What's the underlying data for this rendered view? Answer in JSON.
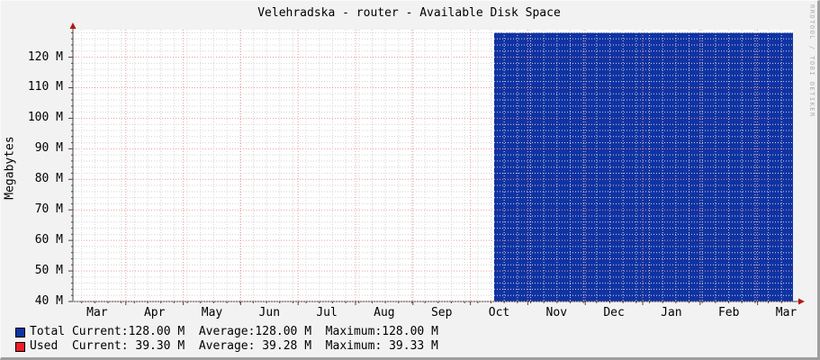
{
  "title": "Velehradska - router - Available Disk Space",
  "watermark": "RRDTOOL / TOBI OETIKER",
  "legend": {
    "labels": {
      "current": "Current:",
      "average": "Average:",
      "maximum": "Maximum:"
    },
    "rows": [
      {
        "name": "Total",
        "color": "#0f33a3",
        "current": "128.00 M",
        "average": "128.00 M",
        "maximum": "128.00 M"
      },
      {
        "name": "Used",
        "color": "#ee1e2a",
        "current": "39.30 M",
        "average": "39.28 M",
        "maximum": "39.33 M"
      }
    ]
  },
  "chart_data": {
    "type": "area",
    "title": "Velehradska - router - Available Disk Space",
    "xlabel": "",
    "ylabel": "Megabytes",
    "ylim": [
      40,
      129
    ],
    "y_unit": "M",
    "y_major_step": 10,
    "y_minor_step": 2,
    "grid": true,
    "legend_position": "bottom",
    "y_ticks": [
      {
        "v": 40,
        "label": "40 M"
      },
      {
        "v": 50,
        "label": "50 M"
      },
      {
        "v": 60,
        "label": "60 M"
      },
      {
        "v": 70,
        "label": "70 M"
      },
      {
        "v": 80,
        "label": "80 M"
      },
      {
        "v": 90,
        "label": "90 M"
      },
      {
        "v": 100,
        "label": "100 M"
      },
      {
        "v": 110,
        "label": "110 M"
      },
      {
        "v": 120,
        "label": "120 M"
      }
    ],
    "x_months": [
      "Mar",
      "Apr",
      "May",
      "Jun",
      "Jul",
      "Aug",
      "Sep",
      "Oct",
      "Nov",
      "Dec",
      "Jan",
      "Feb",
      "Mar"
    ],
    "series": [
      {
        "name": "Total",
        "style": "area",
        "color": "#0f33a3",
        "value": 128.0,
        "start_frac": 0.585,
        "end_frac": 1.0,
        "current": 128.0,
        "average": 128.0,
        "maximum": 128.0
      },
      {
        "name": "Used",
        "style": "line",
        "color": "#ee1e2a",
        "value": 39.3,
        "start_frac": 0.585,
        "end_frac": 1.0,
        "current": 39.3,
        "average": 39.28,
        "maximum": 39.33
      }
    ],
    "colors": {
      "canvas_bg": "#f2f2f2",
      "plot_bg": "#ffffff",
      "major_grid": "#f19999",
      "minor_grid": "#d4d4d4",
      "axis": "#474747",
      "arrow": "#b81414",
      "text": "#000000"
    }
  }
}
